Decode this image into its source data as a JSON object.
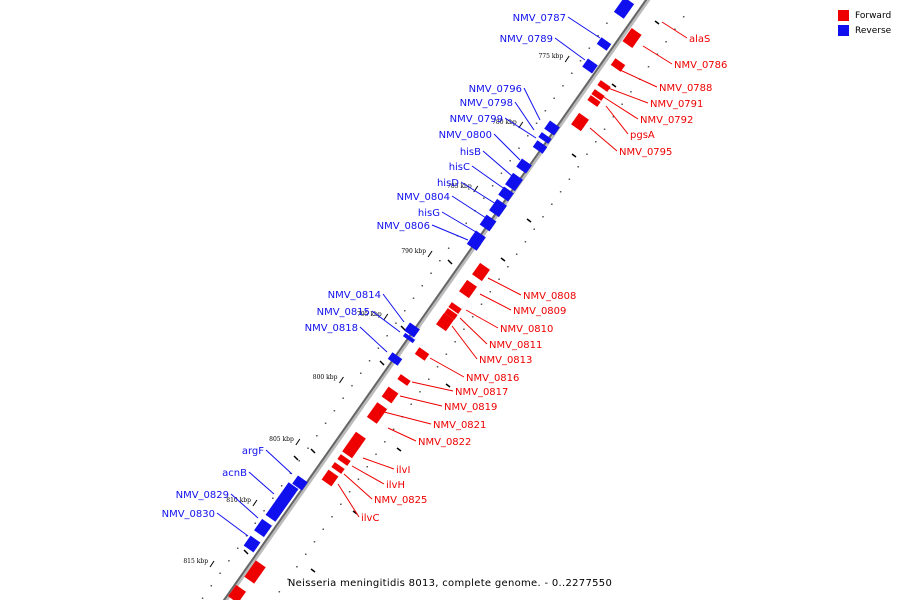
{
  "colors": {
    "forward": "#ee0000",
    "reverse": "#1010ee",
    "axis": "#888888",
    "tick": "#000000"
  },
  "legend": [
    {
      "label": "Forward",
      "color": "#ee0000"
    },
    {
      "label": "Reverse",
      "color": "#1010ee"
    }
  ],
  "caption": "Neisseria meningitidis 8013, complete genome. - 0..2277550",
  "tick_labels": [
    "775 kbp",
    "780 kbp",
    "785 kbp",
    "790 kbp",
    "795 kbp",
    "800 kbp",
    "805 kbp",
    "810 kbp",
    "815 kbp"
  ],
  "forward_genes": [
    "alaS",
    "NMV_0786",
    "NMV_0788",
    "NMV_0791",
    "NMV_0792",
    "pgsA",
    "NMV_0795",
    "NMV_0808",
    "NMV_0809",
    "NMV_0810",
    "NMV_0811",
    "NMV_0813",
    "NMV_0816",
    "NMV_0817",
    "NMV_0819",
    "NMV_0821",
    "NMV_0822",
    "ilvI",
    "ilvH",
    "NMV_0825",
    "ilvC"
  ],
  "reverse_genes": [
    "NMV_0787",
    "NMV_0789",
    "NMV_0796",
    "NMV_0798",
    "NMV_0799",
    "NMV_0800",
    "hisB",
    "hisC",
    "hisD",
    "NMV_0804",
    "hisG",
    "NMV_0806",
    "NMV_0814",
    "NMV_0815",
    "NMV_0818",
    "argF",
    "acnB",
    "NMV_0829",
    "NMV_0830"
  ]
}
